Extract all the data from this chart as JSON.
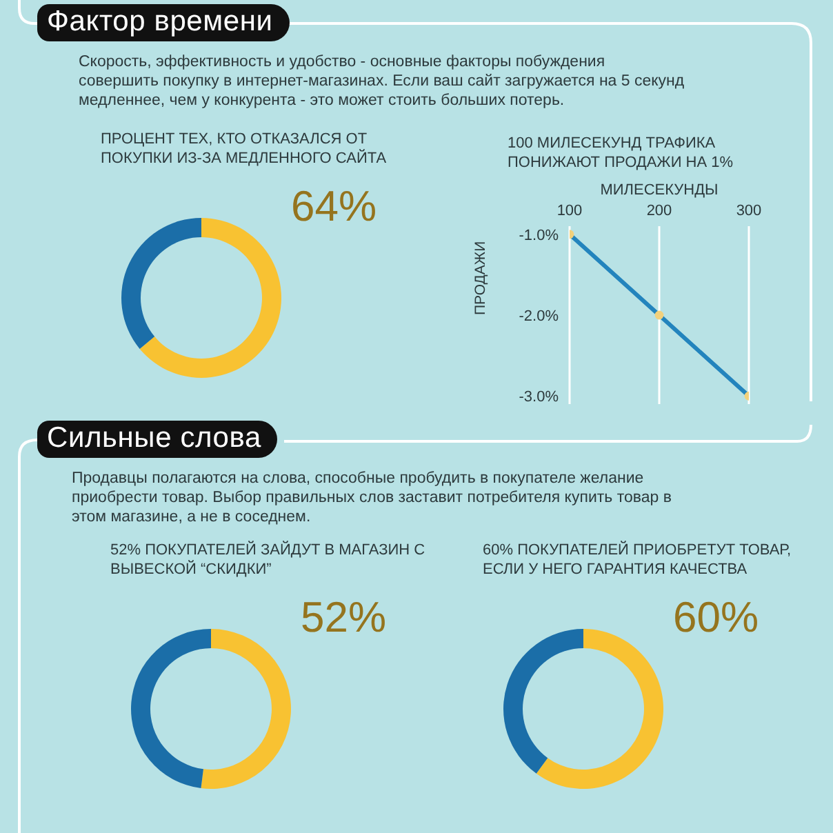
{
  "chart_data": [
    {
      "type": "other",
      "title": "Фактор времени",
      "annotations": [
        "Скорость, эффективность и удобство - основные факторы побуждения совершить покупку в интернет-магазинах. Если ваш сайт загружается на 5 секунд медленнее, чем у конкурента - это может стоить больших потерь."
      ]
    },
    {
      "type": "donut",
      "title": "ПРОЦЕНТ ТЕХ, КТО ОТКАЗАЛСЯ ОТ ПОКУПКИ ИЗ-ЗА МЕДЛЕННОГО САЙТА",
      "categories": [
        null,
        null
      ],
      "values": [
        64,
        36
      ],
      "colors": [
        "#f8c232",
        "#1b6ea8"
      ],
      "value_labels": [
        "64%",
        null
      ]
    },
    {
      "type": "line",
      "title": "100 МИЛЕСЕКУНД ТРАФИКА ПОНИЖАЮТ ПРОДАЖИ НА 1%",
      "xlabel": "МИЛЕСЕКУНДЫ",
      "ylabel": "ПРОДАЖИ",
      "x": [
        100,
        200,
        300
      ],
      "series": [
        {
          "color": "#2384bd",
          "colors": [
            "#f2d17c",
            "#f2d17c",
            "#f2d17c"
          ],
          "values": [
            -1,
            -2,
            -3
          ]
        }
      ],
      "xlim": [
        100,
        300
      ],
      "xticks": [
        100,
        200,
        300
      ],
      "ylim": [
        -3.1,
        -0.9
      ],
      "yticks": [
        {
          "value": -1,
          "label": "-1.0%"
        },
        {
          "value": -2,
          "label": "-2.0%"
        },
        {
          "value": -3,
          "label": "-3.0%"
        }
      ],
      "grid": "x",
      "marker": "circle"
    },
    {
      "type": "other",
      "title": "Сильные слова",
      "annotations": [
        "Продавцы полагаются на слова, способные пробудить в покупателе желание приобрести товар. Выбор правильных слов заставит потребителя купить товар в этом магазине, а не в соседнем."
      ]
    },
    {
      "type": "donut",
      "title": "52% ПОКУПАТЕЛЕЙ ЗАЙДУТ В МАГАЗИН С ВЫВЕСКОЙ “СКИДКИ”",
      "categories": [
        null,
        null
      ],
      "values": [
        52,
        48
      ],
      "colors": [
        "#f8c232",
        "#1b6ea8"
      ],
      "value_labels": [
        "52%",
        null
      ]
    },
    {
      "type": "donut",
      "title": "60% ПОКУПАТЕЛЕЙ ПРИОБРЕТУТ ТОВАР, ЕСЛИ У НЕГО ГАРАНТИЯ КАЧЕСТВА",
      "categories": [
        null,
        null
      ],
      "values": [
        60,
        40
      ],
      "colors": [
        "#f8c232",
        "#1b6ea8"
      ],
      "value_labels": [
        "60%",
        null
      ]
    }
  ]
}
